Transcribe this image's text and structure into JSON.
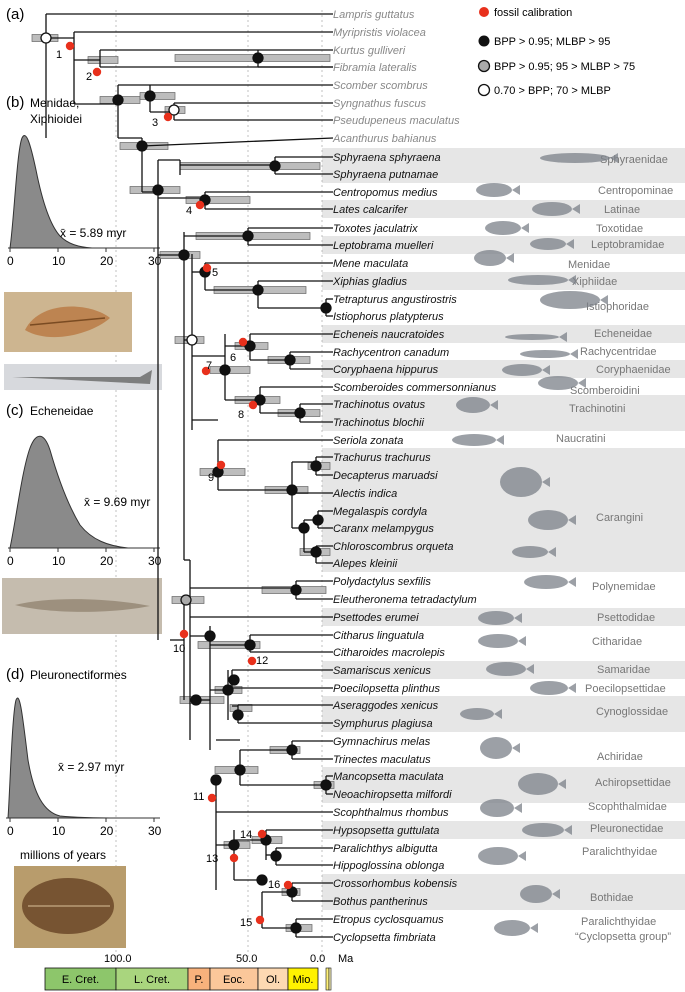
{
  "panels": {
    "a": "(a)",
    "b": "(b)",
    "b_title1": "Menidae,",
    "b_title2": "Xiphioidei",
    "b_mean": "x̄ = 5.89 myr",
    "c": "(c)",
    "c_title": "Echeneidae",
    "c_mean": "x̄ = 9.69 myr",
    "d": "(d)",
    "d_title": "Pleuronectiformes",
    "d_mean": "x̄ = 2.97 myr",
    "millions": "millions of years"
  },
  "hist_ticks": [
    "0",
    "10",
    "20",
    "30"
  ],
  "legend": [
    "fossil calibration",
    "BPP > 0.95; MLBP > 95",
    "BPP > 0.95; 95 > MLBP > 75",
    "0.70 > BPP; 70 > MLBP"
  ],
  "colors": {
    "fossil": "#e8301c",
    "bar": "#bdbdbd",
    "shade": "#e6e6e6",
    "grey_taxa": "#888888"
  },
  "taxa": [
    "Lampris guttatus",
    "Myripristis violacea",
    "Kurtus gulliveri",
    "Fibramia lateralis",
    "Scomber scombrus",
    "Syngnathus fuscus",
    "Pseudupeneus maculatus",
    "Acanthurus bahianus",
    "Sphyraena sphyraena",
    "Sphyraena putnamae",
    "Centropomus medius",
    "Lates calcarifer",
    "Toxotes jaculatrix",
    "Leptobrama muelleri",
    "Mene maculata",
    "Xiphias gladius",
    "Tetrapturus angustirostris",
    "Istiophorus platypterus",
    "Echeneis naucratoides",
    "Rachycentron canadum",
    "Coryphaena hippurus",
    "Scomberoides commersonnianus",
    "Trachinotus ovatus",
    "Trachinotus blochii",
    "Seriola zonata",
    "Trachurus trachurus",
    "Decapterus maruadsi",
    "Alectis indica",
    "Megalaspis cordyla",
    "Caranx melampygus",
    "Chloroscombrus orqueta",
    "Alepes kleinii",
    "Polydactylus sexfilis",
    "Eleutheronema tetradactylum",
    "Psettodes erumei",
    "Citharus linguatula",
    "Citharoides macrolepis",
    "Samariscus xenicus",
    "Poecilopsetta plinthus",
    "Aseraggodes xenicus",
    "Symphurus plagiusa",
    "Gymnachirus melas",
    "Trinectes maculatus",
    "Mancopsetta maculata",
    "Neoachiropsetta milfordi",
    "Scophthalmus rhombus",
    "Hypsopsetta guttulata",
    "Paralichthys albigutta",
    "Hippoglossina oblonga",
    "Crossorhombus kobensis",
    "Bothus pantherinus",
    "Etropus cyclosquamus",
    "Cyclopsetta fimbriata"
  ],
  "families": [
    {
      "name": "Sphyraenidae"
    },
    {
      "name": "Centropominae"
    },
    {
      "name": "Latinae"
    },
    {
      "name": "Toxotidae"
    },
    {
      "name": "Leptobramidae"
    },
    {
      "name": "Menidae"
    },
    {
      "name": "Xiphiidae"
    },
    {
      "name": "Istiophoridae"
    },
    {
      "name": "Echeneidae"
    },
    {
      "name": "Rachycentridae"
    },
    {
      "name": "Coryphaenidae"
    },
    {
      "name": "Scomberoidini"
    },
    {
      "name": "Trachinotini"
    },
    {
      "name": "Naucratini"
    },
    {
      "name": "Carangini"
    },
    {
      "name": "Polynemidae"
    },
    {
      "name": "Psettodidae"
    },
    {
      "name": "Citharidae"
    },
    {
      "name": "Samaridae"
    },
    {
      "name": "Poecilopsettidae"
    },
    {
      "name": "Cynoglossidae"
    },
    {
      "name": "Achiridae"
    },
    {
      "name": "Achiropsettidae"
    },
    {
      "name": "Scophthalmidae"
    },
    {
      "name": "Pleuronectidae"
    },
    {
      "name": "Paralichthyidae"
    },
    {
      "name": "Bothidae"
    },
    {
      "name": "Paralichthyidae"
    },
    {
      "name": "“Cyclopsetta group”"
    }
  ],
  "calibrations": [
    "1",
    "2",
    "3",
    "4",
    "5",
    "6",
    "7",
    "8",
    "9",
    "10",
    "11",
    "12",
    "13",
    "14",
    "15",
    "16"
  ],
  "timescale": {
    "periods": [
      {
        "label": "E. Cret.",
        "color": "#8dc66b"
      },
      {
        "label": "L. Cret.",
        "color": "#a9d57e"
      },
      {
        "label": "P.",
        "color": "#f8b27c"
      },
      {
        "label": "Eoc.",
        "color": "#fbc79a"
      },
      {
        "label": "Ol.",
        "color": "#fdd9b2"
      },
      {
        "label": "Mio.",
        "color": "#fff200"
      }
    ],
    "ticks": [
      "100.0",
      "50.0",
      "0.0"
    ],
    "unit": "Ma"
  }
}
